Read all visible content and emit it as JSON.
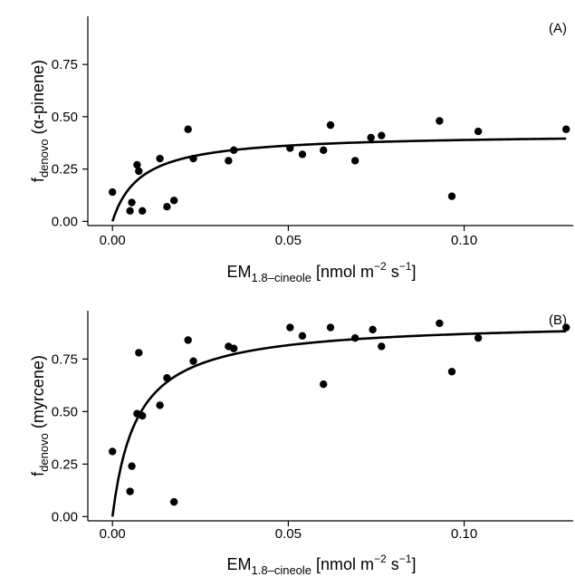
{
  "chart_data": [
    {
      "type": "scatter",
      "panel_label": "(A)",
      "xlabel": {
        "base": "EM",
        "sub": "1.8–cineole",
        "unit_open": " [nmol m",
        "sup1": "−2",
        "unit_mid": " s",
        "sup2": "−1",
        "unit_close": "]"
      },
      "ylabel": {
        "base": "f",
        "sub": "denovo",
        "rest": " (α-pinene)"
      },
      "xlim": [
        -0.007,
        0.131
      ],
      "ylim": [
        -0.02,
        0.98
      ],
      "xticks": [
        0.0,
        0.05,
        0.1
      ],
      "xtick_labels": [
        "0.00",
        "0.05",
        "0.10"
      ],
      "yticks": [
        0.0,
        0.25,
        0.5,
        0.75
      ],
      "ytick_labels": [
        "0.00",
        "0.25",
        "0.50",
        "0.75"
      ],
      "points": [
        {
          "x": 0.0,
          "y": 0.14
        },
        {
          "x": 0.005,
          "y": 0.05
        },
        {
          "x": 0.0055,
          "y": 0.09
        },
        {
          "x": 0.007,
          "y": 0.27
        },
        {
          "x": 0.0075,
          "y": 0.24
        },
        {
          "x": 0.0085,
          "y": 0.05
        },
        {
          "x": 0.0135,
          "y": 0.3
        },
        {
          "x": 0.0155,
          "y": 0.07
        },
        {
          "x": 0.0175,
          "y": 0.1
        },
        {
          "x": 0.0215,
          "y": 0.44
        },
        {
          "x": 0.023,
          "y": 0.3
        },
        {
          "x": 0.033,
          "y": 0.29
        },
        {
          "x": 0.0345,
          "y": 0.34
        },
        {
          "x": 0.0505,
          "y": 0.35
        },
        {
          "x": 0.054,
          "y": 0.32
        },
        {
          "x": 0.06,
          "y": 0.34
        },
        {
          "x": 0.062,
          "y": 0.46
        },
        {
          "x": 0.069,
          "y": 0.29
        },
        {
          "x": 0.0735,
          "y": 0.4
        },
        {
          "x": 0.0765,
          "y": 0.41
        },
        {
          "x": 0.093,
          "y": 0.48
        },
        {
          "x": 0.0965,
          "y": 0.12
        },
        {
          "x": 0.104,
          "y": 0.43
        },
        {
          "x": 0.129,
          "y": 0.44
        }
      ],
      "fit": {
        "model": "michaelis-menten",
        "ymax": 0.42,
        "k": 0.008
      }
    },
    {
      "type": "scatter",
      "panel_label": "(B)",
      "xlabel": {
        "base": "EM",
        "sub": "1.8–cineole",
        "unit_open": " [nmol m",
        "sup1": "−2",
        "unit_mid": " s",
        "sup2": "−1",
        "unit_close": "]"
      },
      "ylabel": {
        "base": "f",
        "sub": "denovo",
        "rest": " (myrcene)"
      },
      "xlim": [
        -0.007,
        0.131
      ],
      "ylim": [
        -0.02,
        0.98
      ],
      "xticks": [
        0.0,
        0.05,
        0.1
      ],
      "xtick_labels": [
        "0.00",
        "0.05",
        "0.10"
      ],
      "yticks": [
        0.0,
        0.25,
        0.5,
        0.75
      ],
      "ytick_labels": [
        "0.00",
        "0.25",
        "0.50",
        "0.75"
      ],
      "points": [
        {
          "x": 0.0,
          "y": 0.31
        },
        {
          "x": 0.005,
          "y": 0.12
        },
        {
          "x": 0.0055,
          "y": 0.24
        },
        {
          "x": 0.007,
          "y": 0.49
        },
        {
          "x": 0.0075,
          "y": 0.78
        },
        {
          "x": 0.0085,
          "y": 0.48
        },
        {
          "x": 0.0135,
          "y": 0.53
        },
        {
          "x": 0.0155,
          "y": 0.66
        },
        {
          "x": 0.0175,
          "y": 0.07
        },
        {
          "x": 0.0215,
          "y": 0.84
        },
        {
          "x": 0.023,
          "y": 0.74
        },
        {
          "x": 0.033,
          "y": 0.81
        },
        {
          "x": 0.0345,
          "y": 0.8
        },
        {
          "x": 0.0505,
          "y": 0.9
        },
        {
          "x": 0.054,
          "y": 0.86
        },
        {
          "x": 0.06,
          "y": 0.63
        },
        {
          "x": 0.062,
          "y": 0.9
        },
        {
          "x": 0.069,
          "y": 0.85
        },
        {
          "x": 0.074,
          "y": 0.89
        },
        {
          "x": 0.0765,
          "y": 0.81
        },
        {
          "x": 0.093,
          "y": 0.92
        },
        {
          "x": 0.0965,
          "y": 0.69
        },
        {
          "x": 0.104,
          "y": 0.85
        },
        {
          "x": 0.129,
          "y": 0.9
        }
      ],
      "fit": {
        "model": "michaelis-menten",
        "ymax": 0.93,
        "k": 0.007
      }
    }
  ]
}
